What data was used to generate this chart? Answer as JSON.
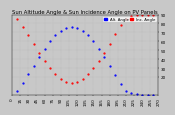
{
  "title": "Sun Altitude Angle & Sun Incidence Angle on PV Panels",
  "legend_entries": [
    "Alt. Angle",
    "Inc. Angle"
  ],
  "blue_color": "#0000ff",
  "red_color": "#ff0000",
  "background_color": "#c8c8c8",
  "plot_bg_color": "#c8c8c8",
  "grid_color": "#aaaaaa",
  "altitude_x": [
    10,
    20,
    30,
    40,
    50,
    60,
    70,
    80,
    90,
    100,
    110,
    120,
    130,
    140,
    150,
    160,
    170,
    180,
    190,
    200,
    210,
    220,
    230,
    240,
    250,
    260
  ],
  "altitude_y": [
    5,
    14,
    23,
    33,
    43,
    52,
    60,
    67,
    72,
    75,
    76,
    75,
    72,
    67,
    60,
    52,
    43,
    33,
    22,
    12,
    5,
    2,
    1,
    0,
    0,
    0
  ],
  "incidence_x": [
    10,
    20,
    30,
    40,
    50,
    60,
    70,
    80,
    90,
    100,
    110,
    120,
    130,
    140,
    150,
    160,
    170,
    180,
    190,
    200,
    210,
    220,
    230,
    240,
    250,
    260
  ],
  "incidence_y": [
    85,
    76,
    67,
    57,
    47,
    38,
    30,
    23,
    18,
    15,
    14,
    15,
    18,
    23,
    30,
    38,
    47,
    57,
    68,
    78,
    85,
    88,
    89,
    90,
    90,
    90
  ],
  "ylim": [
    0,
    90
  ],
  "xlim": [
    0,
    270
  ],
  "yticks": [
    20,
    30,
    40,
    50,
    60,
    70,
    80,
    90
  ],
  "xticks": [
    0,
    15,
    30,
    45,
    60,
    75,
    90,
    105,
    120,
    135,
    150,
    165,
    180,
    195,
    210,
    225,
    240,
    255,
    270
  ],
  "title_fontsize": 3.8,
  "tick_fontsize": 3.0,
  "legend_fontsize": 2.8,
  "marker_size": 1.2
}
